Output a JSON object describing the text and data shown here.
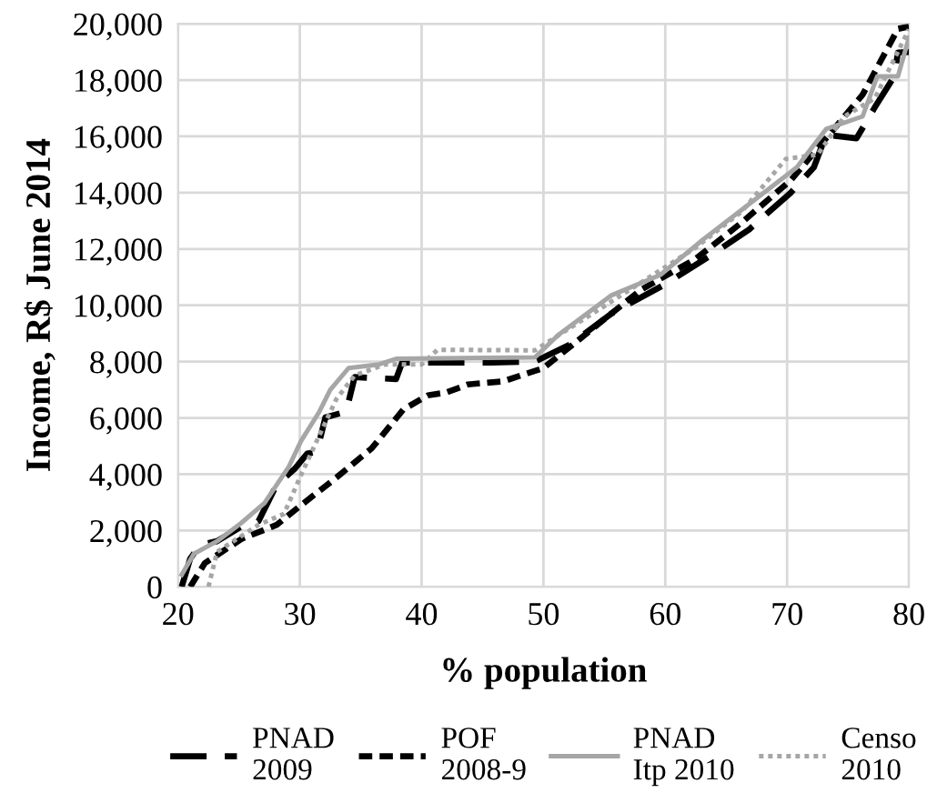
{
  "chart_data": {
    "type": "line",
    "xlabel": "% population",
    "ylabel": "Income, R$ June 2014",
    "xlim": [
      20,
      80
    ],
    "xticks": [
      20,
      30,
      40,
      50,
      60,
      70,
      80
    ],
    "ylim": [
      0,
      20000
    ],
    "yticks": [
      {
        "value": 0,
        "label": "0"
      },
      {
        "value": 2000,
        "label": "2,000"
      },
      {
        "value": 4000,
        "label": "4,000"
      },
      {
        "value": 6000,
        "label": "6,000"
      },
      {
        "value": 8000,
        "label": "8,000"
      },
      {
        "value": 10000,
        "label": "10,000"
      },
      {
        "value": 12000,
        "label": "12,000"
      },
      {
        "value": 14000,
        "label": "14,000"
      },
      {
        "value": 16000,
        "label": "16,000"
      },
      {
        "value": 18000,
        "label": "18,000"
      },
      {
        "value": 20000,
        "label": "20,000"
      }
    ],
    "grid": true,
    "legend": "bottom",
    "marker": "none",
    "series": [
      {
        "name": "PNAD\n2009",
        "color": "#000000",
        "line_style": "dashed",
        "x": [
          20.3,
          21,
          21.8,
          23.2,
          25.2,
          26.6,
          28.1,
          29.6,
          30.6,
          31.4,
          32.1,
          33.8,
          34.5,
          37.9,
          38.4,
          45.7,
          49.3,
          52.2,
          55.6,
          60,
          64,
          66.9,
          70.3,
          72.2,
          73.2,
          75.7,
          77.2,
          78.8,
          79.1,
          80
        ],
        "values": [
          0,
          1000,
          1490,
          1620,
          2140,
          2330,
          3630,
          4200,
          4730,
          4800,
          6020,
          6220,
          7450,
          7380,
          7970,
          7970,
          8000,
          8610,
          9710,
          10750,
          11850,
          12700,
          14000,
          14900,
          16060,
          15930,
          17030,
          18130,
          18980,
          19000
        ]
      },
      {
        "name": "POF\n2008-9",
        "color": "#000000",
        "line_style": "dotted",
        "x": [
          21,
          22.2,
          25.2,
          28.1,
          30.1,
          33,
          35.9,
          38.5,
          40.5,
          42,
          43.8,
          46.7,
          50,
          53,
          58,
          62.5,
          66.3,
          70.3,
          73.2,
          76.2,
          79.1,
          80
        ],
        "values": [
          0,
          840,
          1700,
          2200,
          2900,
          3880,
          4920,
          6300,
          6800,
          6900,
          7190,
          7300,
          7770,
          8810,
          10550,
          11650,
          12950,
          14440,
          15930,
          17480,
          19820,
          19900
        ]
      },
      {
        "name": "PNAD\nItp 2010",
        "color": "#a6a6a6",
        "line_style": "solid",
        "x": [
          20.3,
          21.3,
          23.2,
          25.2,
          27.1,
          29.1,
          30.1,
          31.6,
          32.5,
          34,
          36.5,
          37.9,
          49.3,
          51.2,
          55.6,
          59.6,
          63,
          66.9,
          70.8,
          73.2,
          76.2,
          77.4,
          79.1,
          80
        ],
        "values": [
          430,
          1170,
          1620,
          2270,
          2980,
          4270,
          5180,
          6220,
          7000,
          7770,
          7900,
          8100,
          8150,
          8940,
          10360,
          11080,
          12300,
          13600,
          14900,
          16260,
          16710,
          18130,
          18130,
          19500
        ]
      },
      {
        "name": "Censo\n2010",
        "color": "#a6a6a6",
        "line_style": "dotted",
        "x": [
          22.5,
          23.2,
          26.6,
          28.7,
          30,
          31.6,
          33,
          34.5,
          37,
          40,
          41.3,
          49.3,
          55.6,
          62.5,
          66.3,
          69.9,
          72.5,
          74.7,
          77.2,
          80
        ],
        "values": [
          0,
          1240,
          2200,
          2590,
          3880,
          5380,
          6670,
          7510,
          7900,
          7900,
          8420,
          8400,
          10140,
          12050,
          13340,
          15200,
          15350,
          16710,
          17350,
          19800
        ]
      }
    ]
  }
}
